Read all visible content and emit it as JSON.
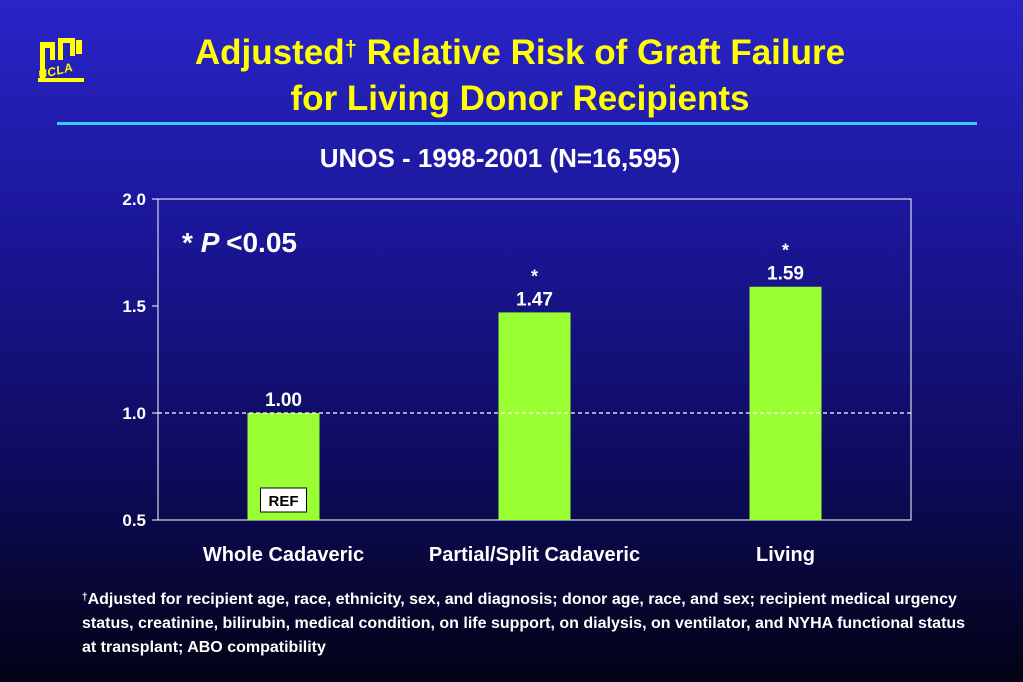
{
  "logo": {
    "text": "UCLA"
  },
  "title": {
    "line1_pre": "Adjusted",
    "dagger": "†",
    "line1_post": " Relative Risk of Graft Failure",
    "line2": "for Living Donor Recipients"
  },
  "footnote": {
    "dagger": "†",
    "text": "Adjusted for recipient age, race, ethnicity, sex, and diagnosis; donor age, race, and sex; recipient medical urgency status, creatinine, bilirubin, medical condition, on life support, on dialysis, on ventilator, and NYHA functional status at transplant; ABO compatibility"
  },
  "colors": {
    "bar": "#99ff33",
    "title": "#ffff00",
    "rule": "#33ccff",
    "axis": "#ffffff"
  },
  "chart_data": {
    "type": "bar",
    "title": "UNOS - 1998-2001 (N=16,595)",
    "xlabel": "",
    "ylabel": "",
    "categories": [
      "Whole Cadaveric",
      "Partial/Split Cadaveric",
      "Living"
    ],
    "values": [
      1.0,
      1.47,
      1.59
    ],
    "value_labels": [
      "1.00",
      "1.47",
      "1.59"
    ],
    "significance_markers": [
      "",
      "*",
      "*"
    ],
    "ylim": [
      0.5,
      2.0
    ],
    "yticks": [
      0.5,
      1.0,
      1.5,
      2.0
    ],
    "ytick_labels": [
      "0.5",
      "1.0",
      "1.5",
      "2.0"
    ],
    "reference_line": 1.0,
    "reference_label": "REF",
    "annotation": {
      "star": "*",
      "p": "P",
      "rest": "<0.05"
    },
    "grid": false
  }
}
